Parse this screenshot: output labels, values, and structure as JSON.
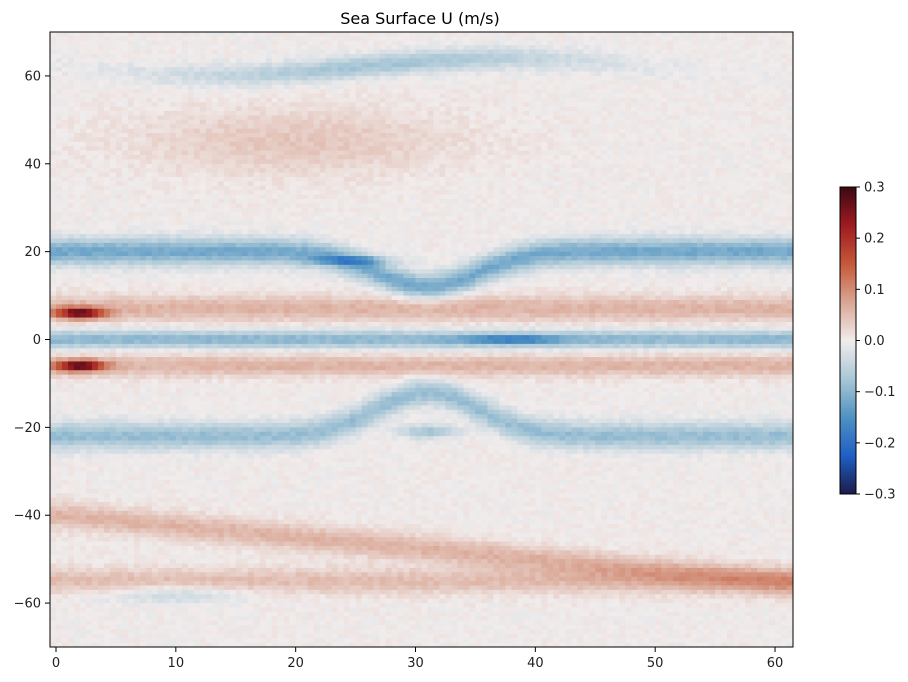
{
  "chart_data": {
    "type": "heatmap",
    "title": "Sea Surface U (m/s)",
    "xlabel": "",
    "ylabel": "",
    "xlim": [
      -0.5,
      61.5
    ],
    "ylim": [
      -70,
      70
    ],
    "x_ticks": [
      "0",
      "10",
      "20",
      "30",
      "40",
      "50",
      "60"
    ],
    "y_ticks": [
      "−60",
      "−40",
      "−20",
      "0",
      "20",
      "40",
      "60"
    ],
    "colorbar": {
      "min": -0.3,
      "max": 0.3,
      "ticks": [
        "0.3",
        "0.2",
        "0.1",
        "0.0",
        "−0.1",
        "−0.2",
        "−0.3"
      ],
      "colormap": "balance (blue-white-red)",
      "colors": [
        "#1b1b4b",
        "#1f5fc4",
        "#4f92c2",
        "#a9c7d6",
        "#f1ecec",
        "#d9a593",
        "#c4583a",
        "#9e1b20",
        "#3c0912"
      ]
    },
    "features": [
      {
        "name": "northern jet 60N",
        "lat": 63,
        "lon": [
          5,
          45
        ],
        "u": -0.08
      },
      {
        "name": "band 20N",
        "lat": 20,
        "lon": [
          0,
          60
        ],
        "u": -0.12
      },
      {
        "name": "core 18N",
        "lat": 18,
        "lon": [
          20,
          28
        ],
        "u": -0.22
      },
      {
        "name": "band 7N",
        "lat": 7,
        "lon": [
          0,
          60
        ],
        "u": 0.06
      },
      {
        "name": "coastal max 6N",
        "lat": 6,
        "lon": [
          0,
          4
        ],
        "u": 0.3
      },
      {
        "name": "equatorial undercurrent",
        "lat": 0,
        "lon": [
          0,
          60
        ],
        "u": -0.1
      },
      {
        "name": "equatorial core",
        "lat": 0,
        "lon": [
          36,
          42
        ],
        "u": -0.2
      },
      {
        "name": "band 6S",
        "lat": -6,
        "lon": [
          0,
          60
        ],
        "u": 0.06
      },
      {
        "name": "coastal max 6S",
        "lat": -6,
        "lon": [
          0,
          4
        ],
        "u": 0.3
      },
      {
        "name": "band 20S",
        "lat": -20,
        "lon": [
          0,
          60
        ],
        "u": -0.1
      },
      {
        "name": "core 21S",
        "lat": -21,
        "lon": [
          29,
          33
        ],
        "u": -0.18
      },
      {
        "name": "band 45S",
        "lat": -45,
        "lon": [
          0,
          60
        ],
        "u": 0.06
      },
      {
        "name": "band 55S",
        "lat": -55,
        "lon": [
          0,
          60
        ],
        "u": 0.05
      }
    ]
  }
}
